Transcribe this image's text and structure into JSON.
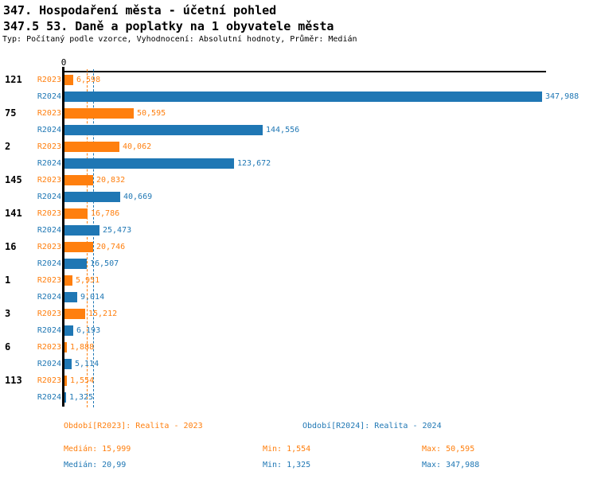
{
  "header": {
    "title": "347. Hospodaření města - účetní pohled",
    "subtitle": "347.5 53. Daně a poplatky na 1 obyvatele města",
    "meta": "Typ: Počítaný podle vzorce, Vyhodnocení: Absolutní hodnoty, Průměr: Medián"
  },
  "colors": {
    "r2023": "#ff7f0e",
    "r2024": "#1f77b4",
    "axis": "#000000"
  },
  "chart_data": {
    "type": "bar",
    "orientation": "horizontal",
    "title": "347.5 53. Daně a poplatky na 1 obyvatele města",
    "xlabel": "",
    "ylabel": "",
    "xlim": [
      0,
      347.988
    ],
    "axis_zero_label": "0",
    "grid": false,
    "legend_position": "bottom",
    "series": [
      {
        "name": "R2023",
        "color": "#ff7f0e",
        "median_value": 15.999
      },
      {
        "name": "R2024",
        "color": "#1f77b4",
        "median_value": 20.99
      }
    ],
    "categories": [
      "121",
      "75",
      "2",
      "145",
      "141",
      "16",
      "1",
      "3",
      "6",
      "113"
    ],
    "rows": [
      {
        "category": "121",
        "values": [
          6.598,
          347.988
        ],
        "labels": [
          "6,598",
          "347,988"
        ]
      },
      {
        "category": "75",
        "values": [
          50.595,
          144.556
        ],
        "labels": [
          "50,595",
          "144,556"
        ]
      },
      {
        "category": "2",
        "values": [
          40.062,
          123.672
        ],
        "labels": [
          "40,062",
          "123,672"
        ]
      },
      {
        "category": "145",
        "values": [
          20.832,
          40.669
        ],
        "labels": [
          "20,832",
          "40,669"
        ]
      },
      {
        "category": "141",
        "values": [
          16.786,
          25.473
        ],
        "labels": [
          "16,786",
          "25,473"
        ]
      },
      {
        "category": "16",
        "values": [
          20.746,
          16.507
        ],
        "labels": [
          "20,746",
          "16,507"
        ]
      },
      {
        "category": "1",
        "values": [
          5.951,
          9.014
        ],
        "labels": [
          "5,951",
          "9,014"
        ]
      },
      {
        "category": "3",
        "values": [
          15.212,
          6.193
        ],
        "labels": [
          "15,212",
          "6,193"
        ]
      },
      {
        "category": "6",
        "values": [
          1.888,
          5.114
        ],
        "labels": [
          "1,888",
          "5,114"
        ]
      },
      {
        "category": "113",
        "values": [
          1.554,
          1.325
        ],
        "labels": [
          "1,554",
          "1,325"
        ]
      }
    ]
  },
  "legend": {
    "r2023": {
      "title": "Období[R2023]: Realita - 2023",
      "median": "Medián: 15,999",
      "min": "Min: 1,554",
      "max": "Max: 50,595"
    },
    "r2024": {
      "title": "Období[R2024]: Realita - 2024",
      "median": "Medián: 20,99",
      "min": "Min: 1,325",
      "max": "Max: 347,988"
    }
  }
}
